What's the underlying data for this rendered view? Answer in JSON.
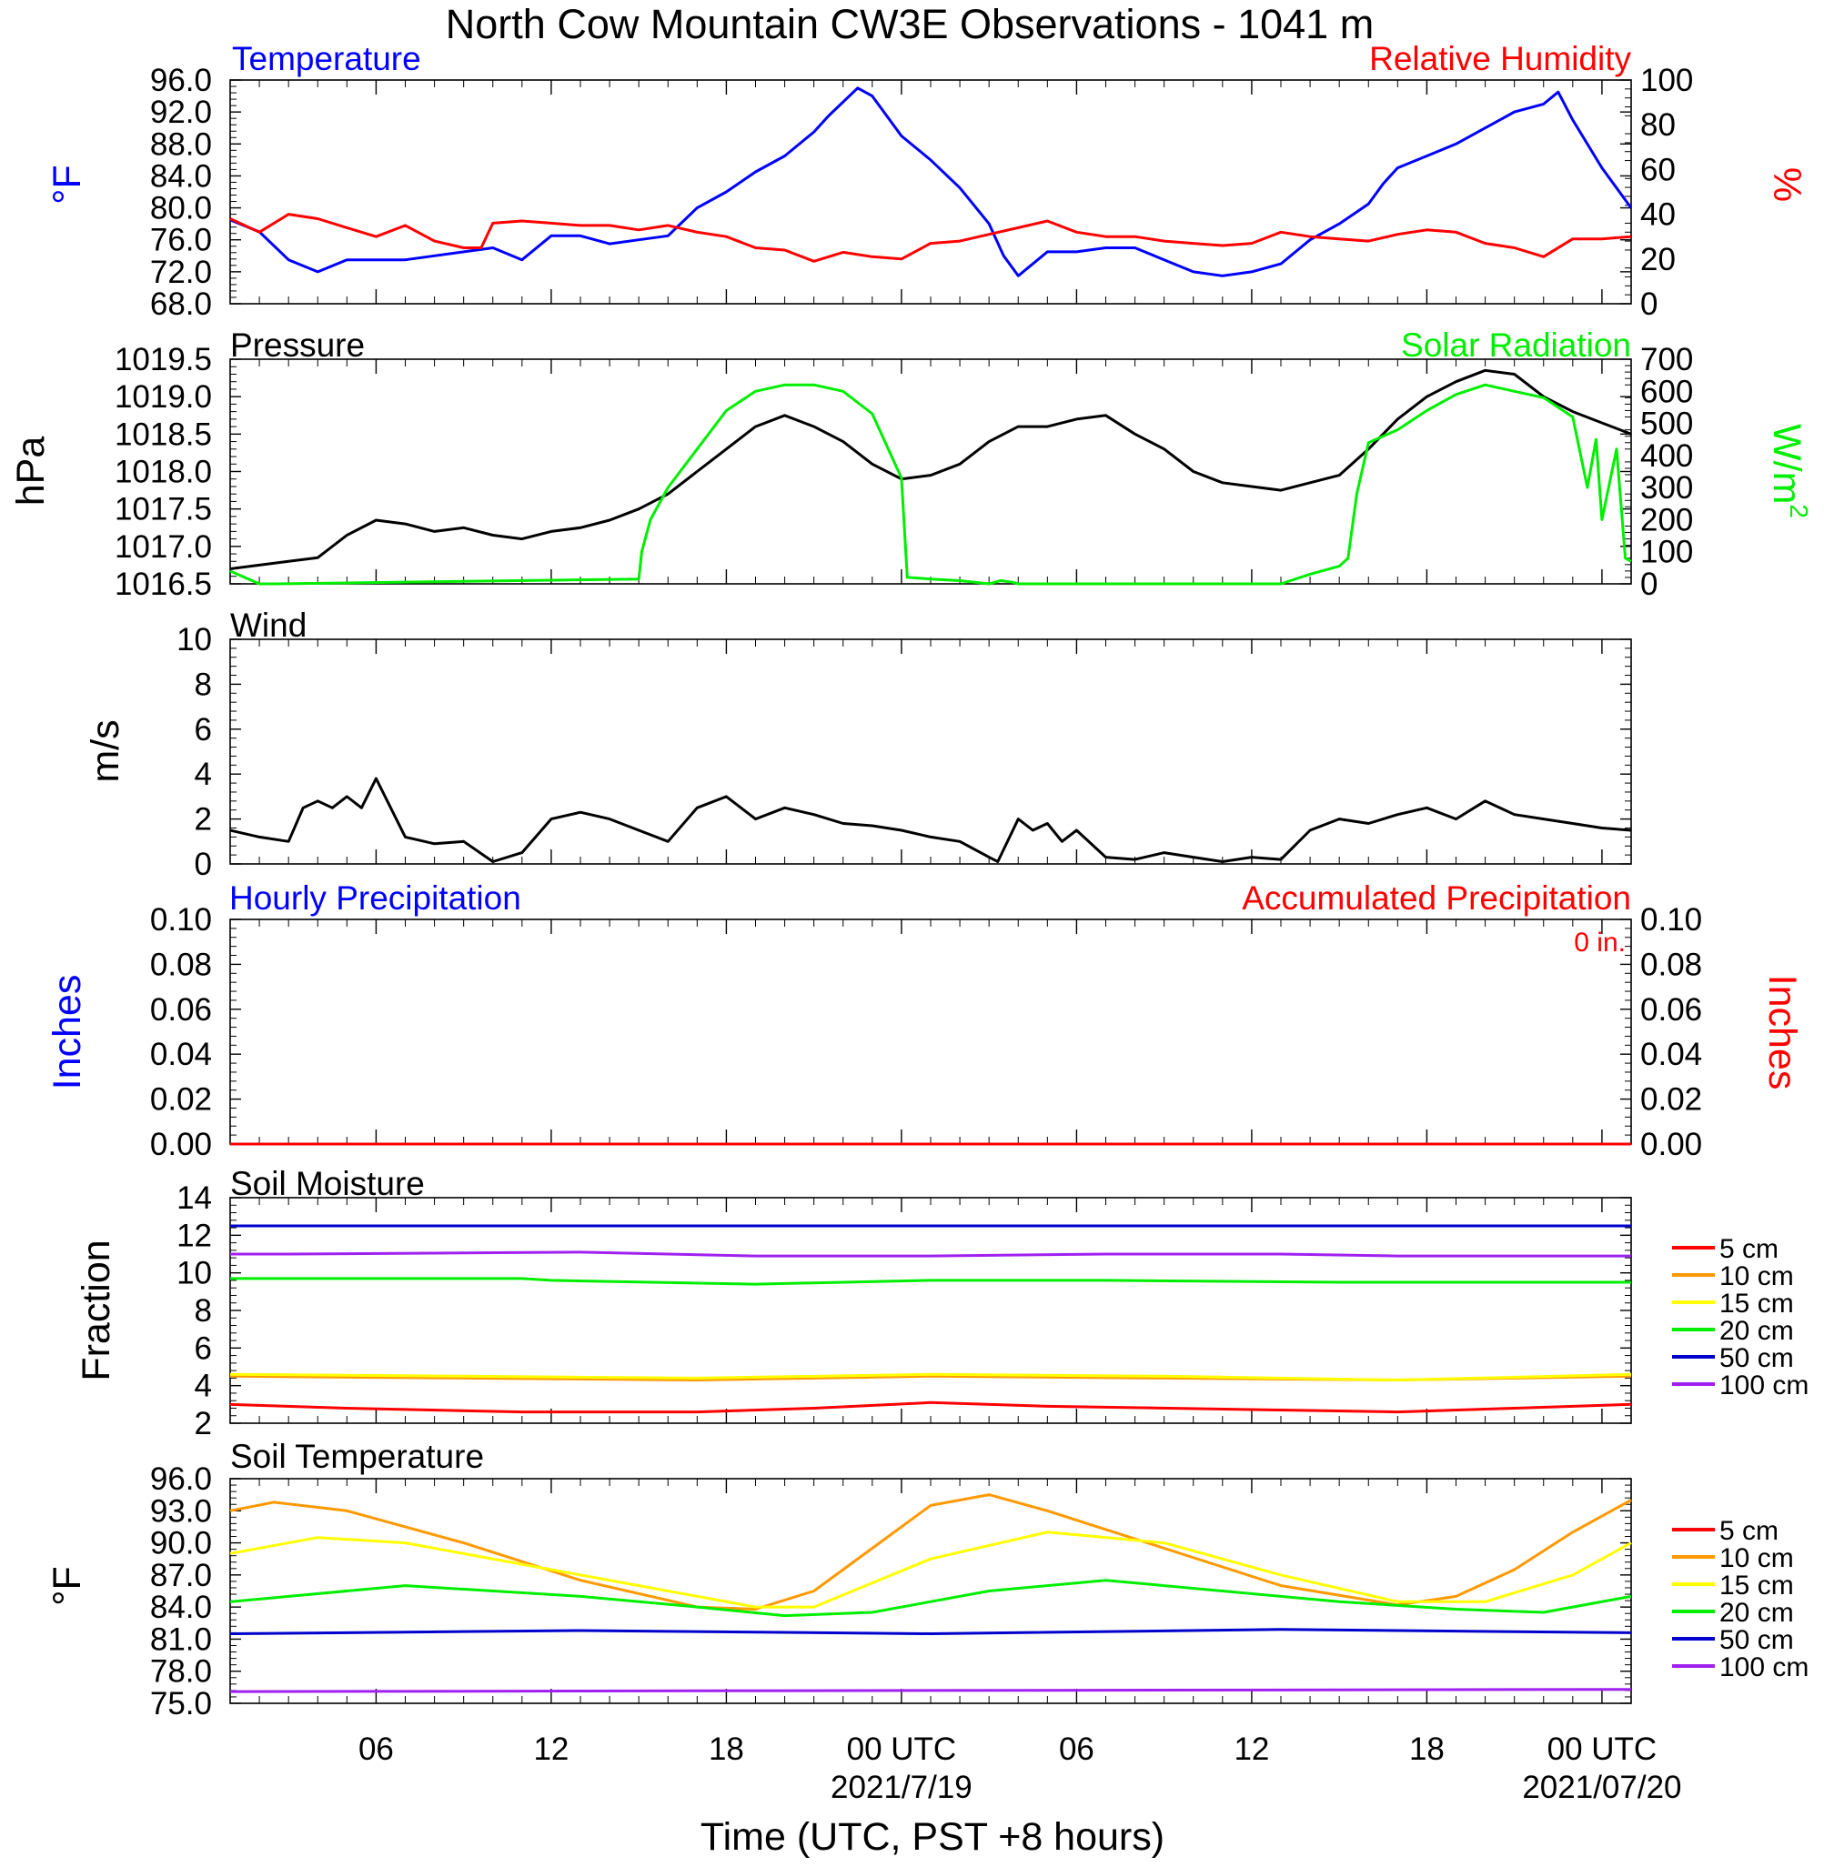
{
  "figure_title": "North Cow Mountain CW3E Observations - 1041 m",
  "x_axis": {
    "title": "Time (UTC, PST +8 hours)",
    "tick_labels": [
      "06",
      "12",
      "18",
      "00 UTC",
      "06",
      "12",
      "18",
      "00 UTC"
    ],
    "date_labels": [
      "2021/7/19",
      "2021/07/20"
    ]
  },
  "colors": {
    "blue": "#0000ff",
    "red": "#ff0000",
    "green": "#00ee00",
    "black": "#000000",
    "orange": "#ff9900",
    "yellow": "#ffff00",
    "purple": "#a020f0",
    "navy": "#0000cd"
  },
  "panels": {
    "temperature": {
      "left_title": "Temperature",
      "right_title": "Relative Humidity",
      "left_unit": "°F",
      "right_unit": "%",
      "left_ticks": [
        "96.0",
        "92.0",
        "88.0",
        "84.0",
        "80.0",
        "76.0",
        "72.0",
        "68.0"
      ],
      "right_ticks": [
        "100",
        "80",
        "60",
        "40",
        "20",
        "0"
      ]
    },
    "pressure": {
      "left_title": "Pressure",
      "right_title": "Solar Radiation",
      "left_unit": "hPa",
      "right_unit": "W/m",
      "left_ticks": [
        "1019.5",
        "1019.0",
        "1018.5",
        "1018.0",
        "1017.5",
        "1017.0",
        "1016.5"
      ],
      "right_ticks": [
        "700",
        "600",
        "500",
        "400",
        "300",
        "200",
        "100",
        "0"
      ]
    },
    "wind": {
      "left_title": "Wind",
      "left_unit": "m/s",
      "left_ticks": [
        "10",
        "8",
        "6",
        "4",
        "2",
        "0"
      ]
    },
    "precip": {
      "left_title": "Hourly Precipitation",
      "right_title": "Accumulated Precipitation",
      "total_label": "0 in.",
      "left_unit": "Inches",
      "right_unit": "Inches",
      "left_ticks": [
        "0.10",
        "0.08",
        "0.06",
        "0.04",
        "0.02",
        "0.00"
      ],
      "right_ticks": [
        "0.10",
        "0.08",
        "0.06",
        "0.04",
        "0.02",
        "0.00"
      ]
    },
    "soil_moisture": {
      "left_title": "Soil Moisture",
      "left_unit": "Fraction",
      "left_ticks": [
        "14",
        "12",
        "10",
        "8",
        "6",
        "4",
        "2"
      ],
      "legend": [
        "5 cm",
        "10 cm",
        "15 cm",
        "20 cm",
        "50 cm",
        "100 cm"
      ]
    },
    "soil_temperature": {
      "left_title": "Soil Temperature",
      "left_unit": "°F",
      "left_ticks": [
        "96.0",
        "93.0",
        "90.0",
        "87.0",
        "84.0",
        "81.0",
        "78.0",
        "75.0"
      ],
      "legend": [
        "5 cm",
        "10 cm",
        "15 cm",
        "20 cm",
        "50 cm",
        "100 cm"
      ]
    }
  },
  "chart_data": [
    {
      "type": "line",
      "title": "Temperature / Relative Humidity",
      "x_units": "hours since 2021-07-18 01 UTC (axis runs ~01 UTC 07/18 to 01 UTC 07/20)",
      "xlim": [
        0,
        48
      ],
      "ylim": [
        68,
        96
      ],
      "ylim_right": [
        0,
        100
      ],
      "series": [
        {
          "name": "Temperature",
          "axis": "left",
          "color": "#0000ff",
          "x": [
            0,
            1,
            2,
            3,
            4,
            5,
            6,
            8,
            9,
            10,
            11,
            12,
            13,
            14,
            15,
            16,
            17,
            18,
            19,
            20,
            20.5,
            21.5,
            22,
            23,
            24,
            25,
            26,
            26.5,
            27,
            28,
            29,
            30,
            31,
            32,
            33,
            34,
            35,
            36,
            37,
            38,
            39,
            39.5,
            40,
            41,
            42,
            43,
            44,
            45,
            45.5,
            46,
            47,
            48
          ],
          "values": [
            78.5,
            77,
            73.5,
            72,
            73.5,
            73.5,
            73.5,
            74.5,
            75,
            73.5,
            76.5,
            76.5,
            75.5,
            76,
            76.5,
            80,
            82,
            84.5,
            86.5,
            89.5,
            91.5,
            95,
            94,
            89,
            86,
            82.5,
            78,
            74,
            71.5,
            74.5,
            74.5,
            75,
            75,
            73.5,
            72,
            71.5,
            72,
            73,
            76,
            78,
            80.5,
            83,
            85,
            86.5,
            88,
            90,
            92,
            93,
            94.5,
            91,
            85,
            80
          ]
        },
        {
          "name": "Relative Humidity",
          "axis": "right",
          "color": "#ff0000",
          "x": [
            0,
            1,
            2,
            3,
            4,
            5,
            6,
            7,
            8,
            8.6,
            9,
            10,
            11,
            12,
            13,
            14,
            15,
            16,
            17,
            18,
            19,
            20,
            21,
            22,
            23,
            24,
            25,
            26,
            27,
            28,
            29,
            30,
            31,
            32,
            33,
            34,
            35,
            36,
            37,
            38,
            39,
            40,
            41,
            42,
            43,
            44,
            45,
            46,
            47,
            48
          ],
          "values": [
            38,
            32,
            40,
            38,
            34,
            30,
            35,
            28,
            25,
            25,
            36,
            37,
            36,
            35,
            35,
            33,
            35,
            32,
            30,
            25,
            24,
            19,
            23,
            21,
            20,
            27,
            28,
            31,
            34,
            37,
            32,
            30,
            30,
            28,
            27,
            26,
            27,
            32,
            30,
            29,
            28,
            31,
            33,
            32,
            27,
            25,
            21,
            29,
            29,
            30
          ]
        }
      ]
    },
    {
      "type": "line",
      "title": "Pressure / Solar Radiation",
      "xlim": [
        0,
        48
      ],
      "ylim": [
        1016.5,
        1019.5
      ],
      "ylim_right": [
        0,
        700
      ],
      "series": [
        {
          "name": "Pressure",
          "axis": "left",
          "color": "#000000",
          "x": [
            0,
            1,
            2,
            3,
            4,
            5,
            6,
            7,
            8,
            9,
            10,
            11,
            12,
            13,
            14,
            15,
            16,
            17,
            18,
            19,
            20,
            21,
            22,
            23,
            24,
            25,
            26,
            27,
            28,
            29,
            30,
            31,
            32,
            33,
            34,
            35,
            36,
            37,
            38,
            39,
            40,
            41,
            42,
            43,
            44,
            45,
            46,
            47,
            48
          ],
          "values": [
            1016.7,
            1016.75,
            1016.8,
            1016.85,
            1017.15,
            1017.35,
            1017.3,
            1017.2,
            1017.25,
            1017.15,
            1017.1,
            1017.2,
            1017.25,
            1017.35,
            1017.5,
            1017.7,
            1018.0,
            1018.3,
            1018.6,
            1018.75,
            1018.6,
            1018.4,
            1018.1,
            1017.9,
            1017.95,
            1018.1,
            1018.4,
            1018.6,
            1018.6,
            1018.7,
            1018.75,
            1018.5,
            1018.3,
            1018.0,
            1017.85,
            1017.8,
            1017.75,
            1017.85,
            1017.95,
            1018.3,
            1018.7,
            1019.0,
            1019.2,
            1019.35,
            1019.3,
            1019.0,
            1018.8,
            1018.65,
            1018.5
          ]
        },
        {
          "name": "Solar Radiation",
          "axis": "right",
          "color": "#00ee00",
          "x": [
            0,
            1,
            1.6,
            14,
            14.1,
            14.4,
            15,
            16,
            17,
            18,
            19,
            20,
            21,
            22,
            23,
            23.2,
            24,
            25,
            26,
            26.4,
            26.8,
            27,
            28,
            36,
            37,
            38,
            38.3,
            38.6,
            39,
            40,
            41,
            42,
            43,
            44,
            45,
            46,
            46.5,
            46.8,
            47,
            47.5,
            47.8,
            48
          ],
          "values": [
            40,
            0,
            0,
            15,
            100,
            200,
            300,
            420,
            540,
            600,
            620,
            620,
            600,
            530,
            330,
            20,
            15,
            10,
            0,
            10,
            5,
            0,
            0,
            0,
            30,
            55,
            80,
            280,
            440,
            480,
            540,
            590,
            620,
            600,
            580,
            520,
            300,
            450,
            200,
            420,
            80,
            70
          ]
        }
      ]
    },
    {
      "type": "line",
      "title": "Wind",
      "xlim": [
        0,
        48
      ],
      "ylim": [
        0,
        10
      ],
      "series": [
        {
          "name": "Wind",
          "color": "#000000",
          "x": [
            0,
            1,
            2,
            2.5,
            3,
            3.5,
            4,
            4.5,
            5,
            6,
            7,
            8,
            9,
            10,
            11,
            12,
            13,
            14,
            15,
            16,
            17,
            18,
            19,
            20,
            21,
            22,
            23,
            24,
            25,
            26,
            26.3,
            27,
            27.5,
            28,
            28.5,
            29,
            30,
            31,
            32,
            33,
            34,
            35,
            36,
            37,
            38,
            39,
            40,
            41,
            42,
            43,
            44,
            45,
            46,
            47,
            48
          ],
          "values": [
            1.5,
            1.2,
            1.0,
            2.5,
            2.8,
            2.5,
            3.0,
            2.5,
            3.8,
            1.2,
            0.9,
            1.0,
            0.1,
            0.5,
            2.0,
            2.3,
            2.0,
            1.5,
            1.0,
            2.5,
            3.0,
            2.0,
            2.5,
            2.2,
            1.8,
            1.7,
            1.5,
            1.2,
            1.0,
            0.3,
            0.1,
            2.0,
            1.5,
            1.8,
            1.0,
            1.5,
            0.3,
            0.2,
            0.5,
            0.3,
            0.1,
            0.3,
            0.2,
            1.5,
            2.0,
            1.8,
            2.2,
            2.5,
            2.0,
            2.8,
            2.2,
            2.0,
            1.8,
            1.6,
            1.5
          ]
        }
      ]
    },
    {
      "type": "line",
      "title": "Hourly / Accumulated Precipitation",
      "xlim": [
        0,
        48
      ],
      "ylim": [
        0,
        0.1
      ],
      "ylim_right": [
        0,
        0.1
      ],
      "series": [
        {
          "name": "Hourly Precipitation",
          "color": "#0000ff",
          "x": [
            0,
            48
          ],
          "values": [
            0,
            0
          ]
        },
        {
          "name": "Accumulated Precipitation",
          "color": "#ff0000",
          "x": [
            0,
            48
          ],
          "values": [
            0,
            0
          ]
        }
      ]
    },
    {
      "type": "line",
      "title": "Soil Moisture",
      "xlim": [
        0,
        48
      ],
      "ylim": [
        2,
        14
      ],
      "series": [
        {
          "name": "5 cm",
          "color": "#ff0000",
          "x": [
            0,
            4,
            10,
            16,
            20,
            24,
            28,
            36,
            40,
            44,
            48
          ],
          "values": [
            3.0,
            2.8,
            2.6,
            2.6,
            2.8,
            3.1,
            2.9,
            2.7,
            2.6,
            2.8,
            3.0
          ]
        },
        {
          "name": "10 cm",
          "color": "#ff9900",
          "x": [
            0,
            8,
            16,
            24,
            32,
            40,
            48
          ],
          "values": [
            4.5,
            4.4,
            4.3,
            4.5,
            4.4,
            4.3,
            4.5
          ]
        },
        {
          "name": "15 cm",
          "color": "#ffff00",
          "x": [
            0,
            8,
            16,
            24,
            32,
            40,
            48
          ],
          "values": [
            4.6,
            4.5,
            4.4,
            4.6,
            4.5,
            4.3,
            4.6
          ]
        },
        {
          "name": "20 cm",
          "color": "#00ee00",
          "x": [
            0,
            10,
            11,
            18,
            24,
            30,
            38,
            40,
            48
          ],
          "values": [
            9.7,
            9.7,
            9.6,
            9.4,
            9.6,
            9.6,
            9.5,
            9.5,
            9.5
          ]
        },
        {
          "name": "50 cm",
          "color": "#0000cd",
          "x": [
            0,
            48
          ],
          "values": [
            12.5,
            12.5
          ]
        },
        {
          "name": "100 cm",
          "color": "#a020f0",
          "x": [
            0,
            2,
            12,
            18,
            24,
            30,
            36,
            40,
            48
          ],
          "values": [
            11.0,
            11.0,
            11.1,
            10.9,
            10.9,
            11.0,
            11.0,
            10.9,
            10.9
          ]
        }
      ]
    },
    {
      "type": "line",
      "title": "Soil Temperature",
      "xlim": [
        0,
        48
      ],
      "ylim": [
        75,
        96
      ],
      "series": [
        {
          "name": "10 cm",
          "color": "#ff9900",
          "x": [
            0,
            1.5,
            4,
            8,
            12,
            16,
            18,
            20,
            22,
            24,
            26,
            28,
            32,
            36,
            40,
            42,
            44,
            46,
            48
          ],
          "values": [
            93.0,
            93.8,
            93.0,
            90.0,
            86.5,
            84.0,
            83.8,
            85.5,
            89.5,
            93.5,
            94.5,
            93.0,
            89.5,
            86.0,
            84.2,
            85.0,
            87.5,
            91.0,
            94.0
          ]
        },
        {
          "name": "15 cm",
          "color": "#ffff00",
          "x": [
            0,
            3,
            6,
            10,
            14,
            18,
            20,
            24,
            28,
            32,
            36,
            40,
            43,
            46,
            48
          ],
          "values": [
            89.0,
            90.5,
            90.0,
            88.0,
            86.0,
            84.0,
            84.0,
            88.5,
            91.0,
            90.0,
            87.0,
            84.5,
            84.5,
            87.0,
            90.0
          ]
        },
        {
          "name": "20 cm",
          "color": "#00ee00",
          "x": [
            0,
            6,
            12,
            16,
            19,
            22,
            26,
            30,
            34,
            38,
            42,
            45,
            48
          ],
          "values": [
            84.5,
            86.0,
            85.0,
            84.0,
            83.2,
            83.5,
            85.5,
            86.5,
            85.5,
            84.5,
            83.8,
            83.5,
            85.0
          ]
        },
        {
          "name": "50 cm",
          "color": "#0000cd",
          "x": [
            0,
            12,
            24,
            36,
            48
          ],
          "values": [
            81.5,
            81.8,
            81.5,
            81.9,
            81.6
          ]
        },
        {
          "name": "100 cm",
          "color": "#a020f0",
          "x": [
            0,
            48
          ],
          "values": [
            76.1,
            76.3
          ]
        }
      ]
    }
  ]
}
